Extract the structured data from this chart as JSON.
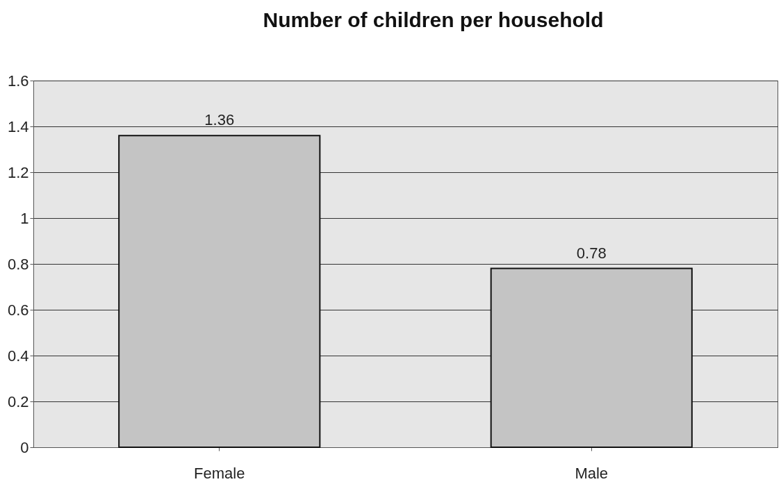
{
  "chart_data": {
    "type": "bar",
    "title": "Number of children per household",
    "categories": [
      "Female",
      "Male"
    ],
    "values": [
      1.36,
      0.78
    ],
    "color": "#c4c4c4",
    "ylim": [
      0,
      1.6
    ],
    "yticks": [
      0,
      0.2,
      0.4,
      0.6,
      0.8,
      1,
      1.2,
      1.4,
      1.6
    ],
    "grid": "y",
    "data_labels": true
  }
}
